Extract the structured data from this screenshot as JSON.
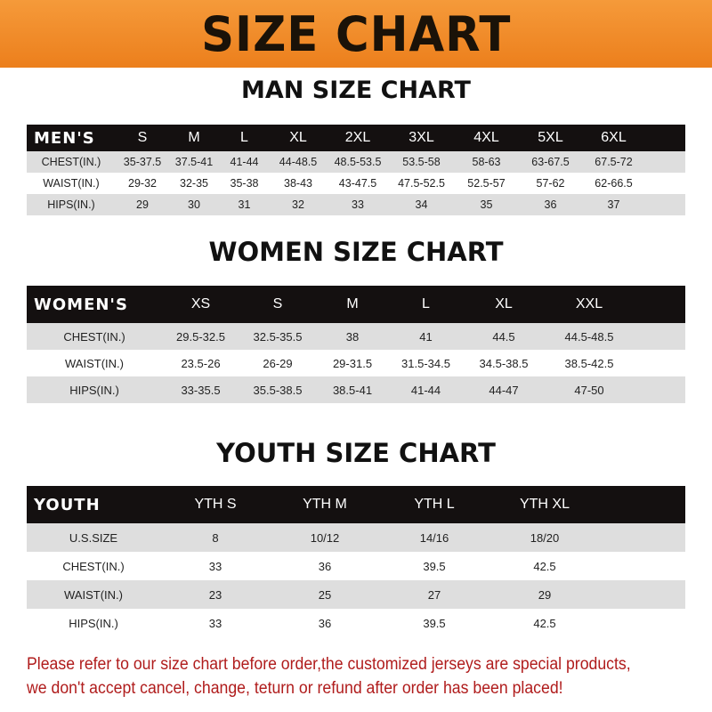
{
  "banner_title": "SIZE CHART",
  "colors": {
    "banner": "#ee8525",
    "header_row": "#141010",
    "stripe": "#dedede",
    "notice": "#b01c1c"
  },
  "men": {
    "title": "MAN SIZE CHART",
    "header": [
      "MEN'S",
      "S",
      "M",
      "L",
      "XL",
      "2XL",
      "3XL",
      "4XL",
      "5XL",
      "6XL"
    ],
    "rows": [
      [
        "CHEST(IN.)",
        "35-37.5",
        "37.5-41",
        "41-44",
        "44-48.5",
        "48.5-53.5",
        "53.5-58",
        "58-63",
        "63-67.5",
        "67.5-72"
      ],
      [
        "WAIST(IN.)",
        "29-32",
        "32-35",
        "35-38",
        "38-43",
        "43-47.5",
        "47.5-52.5",
        "52.5-57",
        "57-62",
        "62-66.5"
      ],
      [
        "HIPS(IN.)",
        "29",
        "30",
        "31",
        "32",
        "33",
        "34",
        "35",
        "36",
        "37"
      ]
    ]
  },
  "women": {
    "title": "WOMEN SIZE CHART",
    "header": [
      "WOMEN'S",
      "XS",
      "S",
      "M",
      "L",
      "XL",
      "XXL"
    ],
    "rows": [
      [
        "CHEST(IN.)",
        "29.5-32.5",
        "32.5-35.5",
        "38",
        "41",
        "44.5",
        "44.5-48.5"
      ],
      [
        "WAIST(IN.)",
        "23.5-26",
        "26-29",
        "29-31.5",
        "31.5-34.5",
        "34.5-38.5",
        "38.5-42.5"
      ],
      [
        "HIPS(IN.)",
        "33-35.5",
        "35.5-38.5",
        "38.5-41",
        "41-44",
        "44-47",
        "47-50"
      ]
    ]
  },
  "youth": {
    "title": "YOUTH SIZE CHART",
    "header": [
      "YOUTH",
      "YTH S",
      "YTH M",
      "YTH L",
      "YTH XL"
    ],
    "rows": [
      [
        "U.S.SIZE",
        "8",
        "10/12",
        "14/16",
        "18/20"
      ],
      [
        "CHEST(IN.)",
        "33",
        "36",
        "39.5",
        "42.5"
      ],
      [
        "WAIST(IN.)",
        "23",
        "25",
        "27",
        "29"
      ],
      [
        "HIPS(IN.)",
        "33",
        "36",
        "39.5",
        "42.5"
      ]
    ]
  },
  "notice": {
    "line1": "Please refer to our size chart before order,the customized jerseys are special products,",
    "line2": "we don't accept cancel, change, teturn or refund after order has been placed!"
  }
}
